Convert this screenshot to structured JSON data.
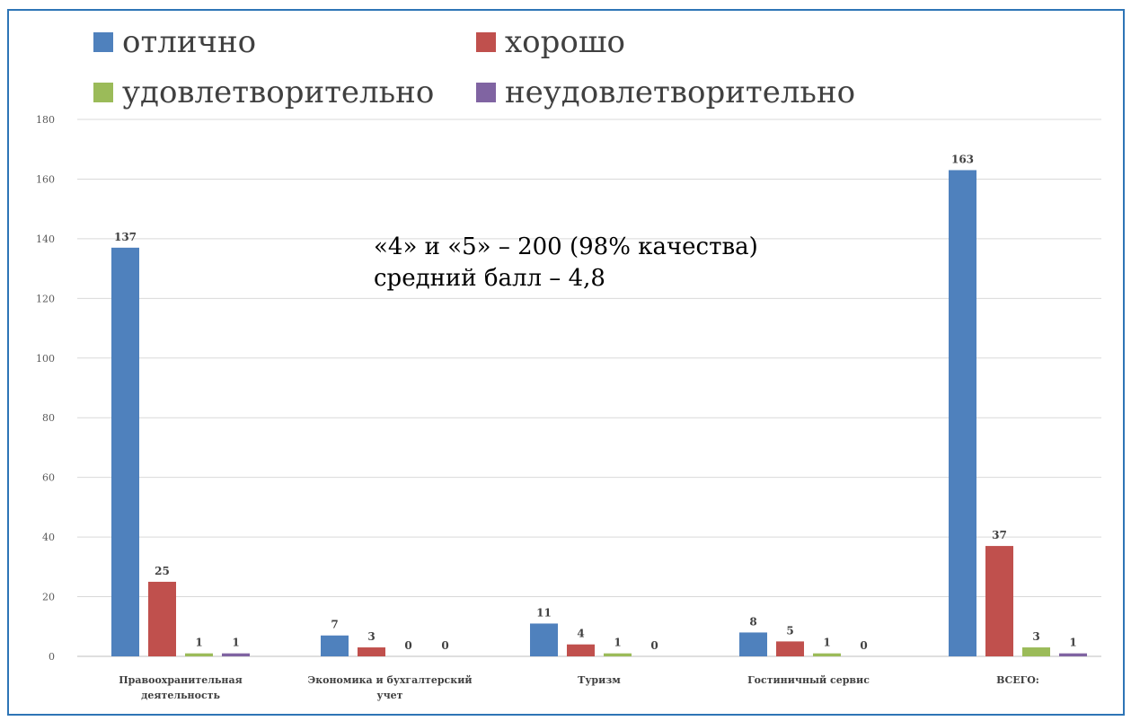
{
  "chart_data": {
    "type": "bar",
    "title": "",
    "xlabel": "",
    "ylabel": "",
    "ylim": [
      0,
      180
    ],
    "yticks": [
      0,
      20,
      40,
      60,
      80,
      100,
      120,
      140,
      160,
      180
    ],
    "grid": true,
    "legend_position": "top",
    "categories": [
      [
        "Правоохранительная",
        "деятельность"
      ],
      [
        "Экономика и бухгалтерский",
        "учет"
      ],
      [
        "Туризм"
      ],
      [
        "Гостиничный сервис"
      ],
      [
        "ВСЕГО:"
      ]
    ],
    "series": [
      {
        "name": "отлично",
        "color": "#4f81bd",
        "values": [
          137,
          7,
          11,
          8,
          163
        ]
      },
      {
        "name": "хорошо",
        "color": "#c0504d",
        "values": [
          25,
          3,
          4,
          5,
          37
        ]
      },
      {
        "name": "удовлетворительно",
        "color": "#9bbb59",
        "values": [
          1,
          0,
          1,
          1,
          3
        ]
      },
      {
        "name": "неудовлетворительно",
        "color": "#8064a2",
        "values": [
          1,
          0,
          0,
          0,
          1
        ]
      }
    ],
    "annotations": [
      "«4» и «5» – 200 (98% качества)",
      "средний балл – 4,8"
    ]
  }
}
